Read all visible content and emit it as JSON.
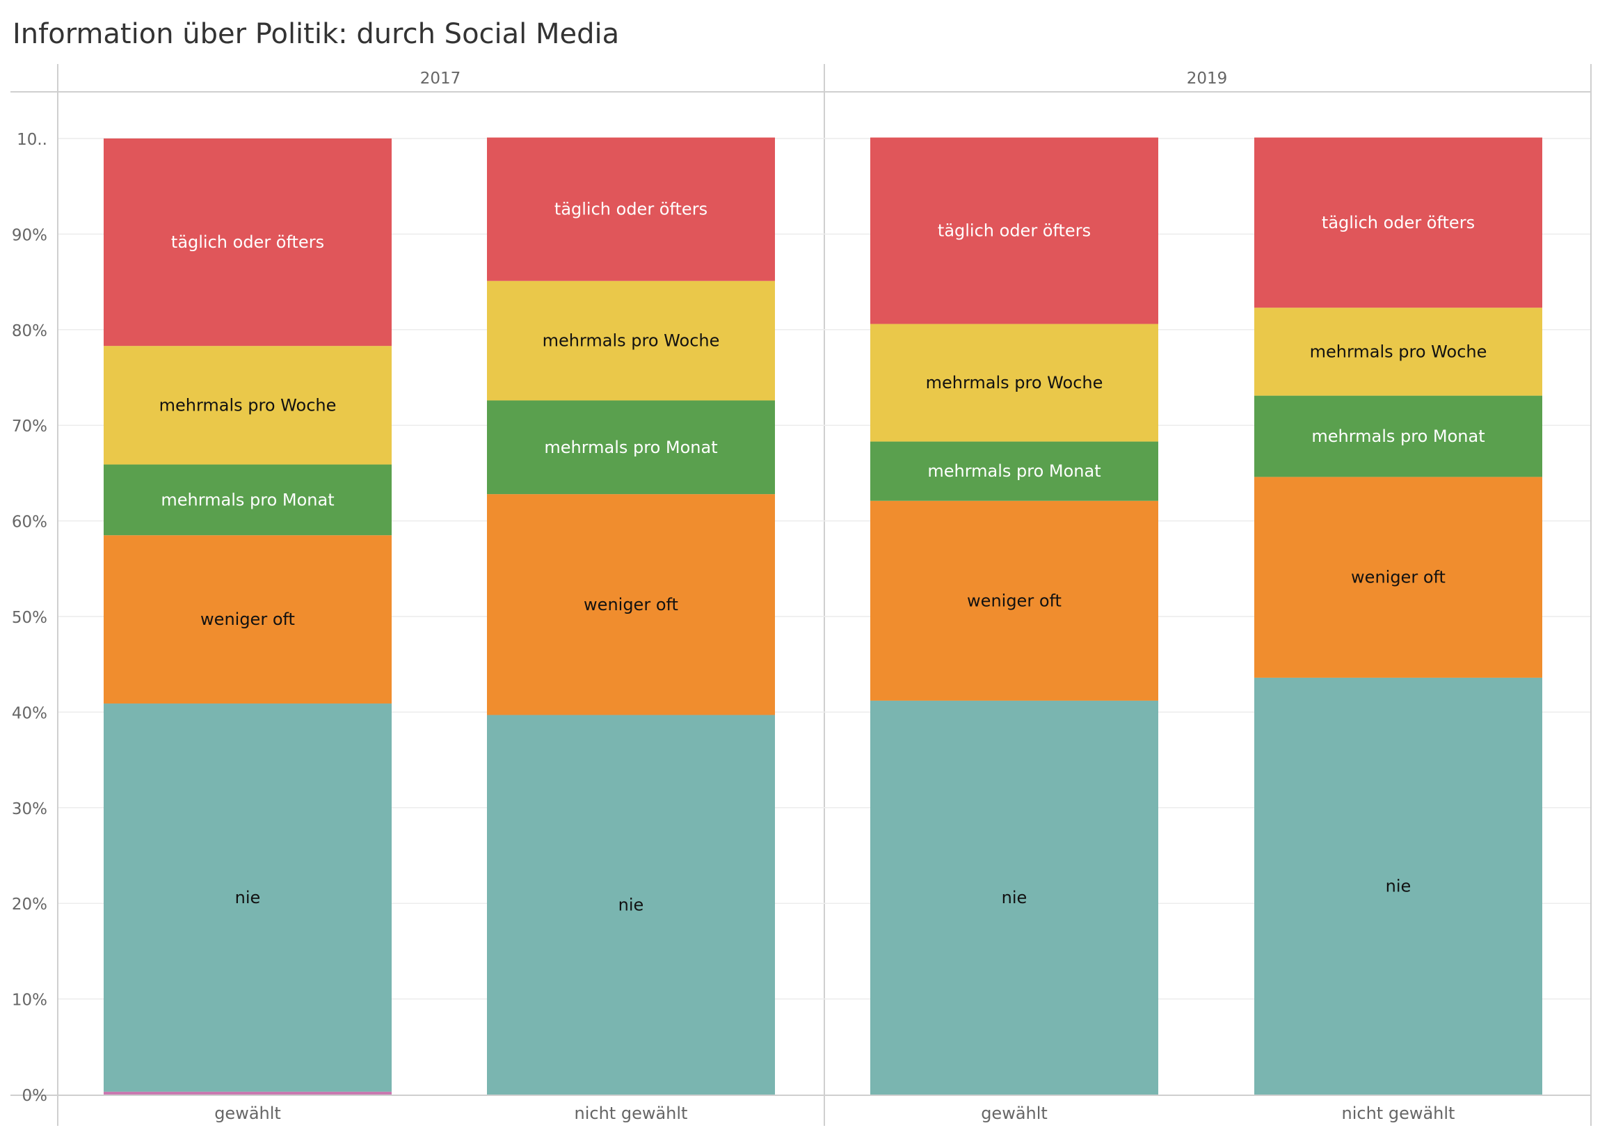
{
  "chart_data": {
    "type": "bar",
    "stacked": true,
    "title": "Information über Politik: durch Social Media",
    "panels": [
      "2017",
      "2019"
    ],
    "categories": [
      "gewählt",
      "nicht gewählt"
    ],
    "y_ticks": [
      "0%",
      "10%",
      "20%",
      "30%",
      "40%",
      "50%",
      "60%",
      "70%",
      "80%",
      "90%",
      "10.."
    ],
    "ylim": [
      0,
      100
    ],
    "grid": true,
    "series": [
      {
        "name": "nie",
        "color": "#7ab5b0",
        "label_color": "#111111",
        "values": {
          "2017": [
            40.6,
            39.7
          ],
          "2019": [
            41.2,
            43.6
          ]
        }
      },
      {
        "name": "weniger oft",
        "color": "#f08d2e",
        "label_color": "#111111",
        "values": {
          "2017": [
            17.6,
            23.1
          ],
          "2019": [
            20.9,
            21.0
          ]
        }
      },
      {
        "name": "mehrmals pro Monat",
        "color": "#5aa04e",
        "label_color": "#ffffff",
        "values": {
          "2017": [
            7.4,
            9.8
          ],
          "2019": [
            6.2,
            8.5
          ]
        }
      },
      {
        "name": "mehrmals pro Woche",
        "color": "#eac84a",
        "label_color": "#111111",
        "values": {
          "2017": [
            12.4,
            12.5
          ],
          "2019": [
            12.3,
            9.2
          ]
        }
      },
      {
        "name": "täglich oder öfters",
        "color": "#e0565a",
        "label_color": "#ffffff",
        "values": {
          "2017": [
            21.7,
            15.0
          ],
          "2019": [
            19.5,
            17.8
          ]
        }
      }
    ],
    "extra_sliver": {
      "color": "#c879b0",
      "values": {
        "2017": [
          0.3,
          0
        ],
        "2019": [
          0,
          0
        ]
      }
    }
  }
}
